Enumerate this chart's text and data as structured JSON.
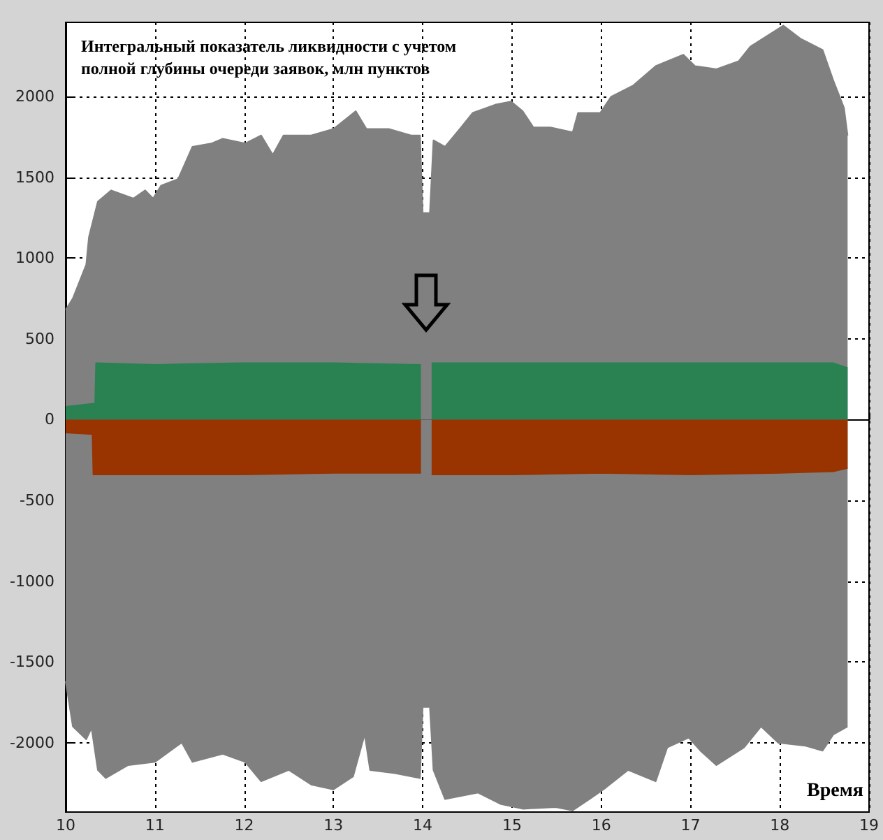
{
  "chart_data": {
    "type": "area",
    "title": "Интегральный показатель ликвидности с учетом полной глубины очереди заявок, млн пунктов",
    "xlabel": "Время",
    "xlim": [
      10,
      19
    ],
    "xticks": [
      10,
      11,
      12,
      13,
      14,
      15,
      16,
      17,
      18,
      19
    ],
    "ylim": [
      -2430,
      2460
    ],
    "yticks": [
      -2000,
      -1500,
      -1000,
      -500,
      0,
      500,
      1000,
      1500,
      2000
    ],
    "grid": true,
    "series": [
      {
        "color": "#808080",
        "x": [
          10,
          10.08,
          10.23,
          10.26,
          10.36,
          10.51,
          10.76,
          10.89,
          10.98,
          11.07,
          11.26,
          11.42,
          11.63,
          11.76,
          12.01,
          12.19,
          12.32,
          12.44,
          12.75,
          13,
          13.25,
          13.37,
          13.62,
          13.87,
          13.97,
          14.0,
          14.08,
          14.12,
          14.25,
          14.43,
          14.56,
          14.81,
          14.99,
          15.12,
          15.24,
          15.43,
          15.68,
          15.74,
          15.99,
          16.11,
          16.36,
          16.61,
          16.92,
          17.05,
          17.29,
          17.54,
          17.67,
          18.04,
          18.23,
          18.48,
          18.6,
          18.72,
          18.76
        ],
        "values": [
          680,
          750,
          960,
          1130,
          1350,
          1420,
          1370,
          1420,
          1370,
          1450,
          1490,
          1690,
          1710,
          1740,
          1710,
          1760,
          1640,
          1760,
          1760,
          1800,
          1910,
          1800,
          1800,
          1760,
          1760,
          1280,
          1280,
          1730,
          1690,
          1810,
          1900,
          1950,
          1970,
          1910,
          1810,
          1810,
          1780,
          1900,
          1900,
          2000,
          2070,
          2190,
          2260,
          2190,
          2170,
          2220,
          2310,
          2440,
          2360,
          2290,
          2100,
          1930,
          1760
        ]
      },
      {
        "color": "#808080",
        "x": [
          10,
          10.08,
          10.23,
          10.29,
          10.36,
          10.45,
          10.7,
          11,
          11.3,
          11.42,
          11.76,
          12.01,
          12.19,
          12.5,
          12.75,
          13,
          13.22,
          13.35,
          13.41,
          13.69,
          13.97,
          14.0,
          14.08,
          14.12,
          14.25,
          14.62,
          14.87,
          15.12,
          15.49,
          15.68,
          15.87,
          16.05,
          16.3,
          16.61,
          16.74,
          16.98,
          17.11,
          17.29,
          17.6,
          17.79,
          17.98,
          18.29,
          18.48,
          18.6,
          18.76
        ],
        "values": [
          -1620,
          -1900,
          -1980,
          -1910,
          -2170,
          -2220,
          -2140,
          -2120,
          -2000,
          -2120,
          -2070,
          -2120,
          -2240,
          -2170,
          -2260,
          -2290,
          -2210,
          -1950,
          -2170,
          -2190,
          -2220,
          -1780,
          -1780,
          -2170,
          -2350,
          -2310,
          -2380,
          -2410,
          -2400,
          -2420,
          -2350,
          -2280,
          -2170,
          -2240,
          -2030,
          -1970,
          -2050,
          -2140,
          -2030,
          -1900,
          -2000,
          -2020,
          -2050,
          -1950,
          -1900
        ]
      },
      {
        "color": "#2a8253",
        "x": [
          10,
          10.33,
          10.34,
          11,
          12,
          13,
          13.98,
          14.0,
          14.08,
          14.1,
          15,
          16,
          17,
          18,
          18.6,
          18.76
        ],
        "values": [
          80,
          100,
          350,
          340,
          350,
          350,
          340,
          null,
          null,
          350,
          350,
          350,
          350,
          350,
          350,
          320
        ]
      },
      {
        "color": "#993300",
        "x": [
          10,
          10.3,
          10.31,
          11,
          12,
          13,
          13.98,
          14.0,
          14.08,
          14.1,
          15,
          16,
          17,
          18,
          18.6,
          18.76
        ],
        "values": [
          -80,
          -90,
          -340,
          -340,
          -340,
          -330,
          -330,
          null,
          null,
          -340,
          -340,
          -330,
          -340,
          -330,
          -320,
          -300
        ]
      }
    ]
  }
}
